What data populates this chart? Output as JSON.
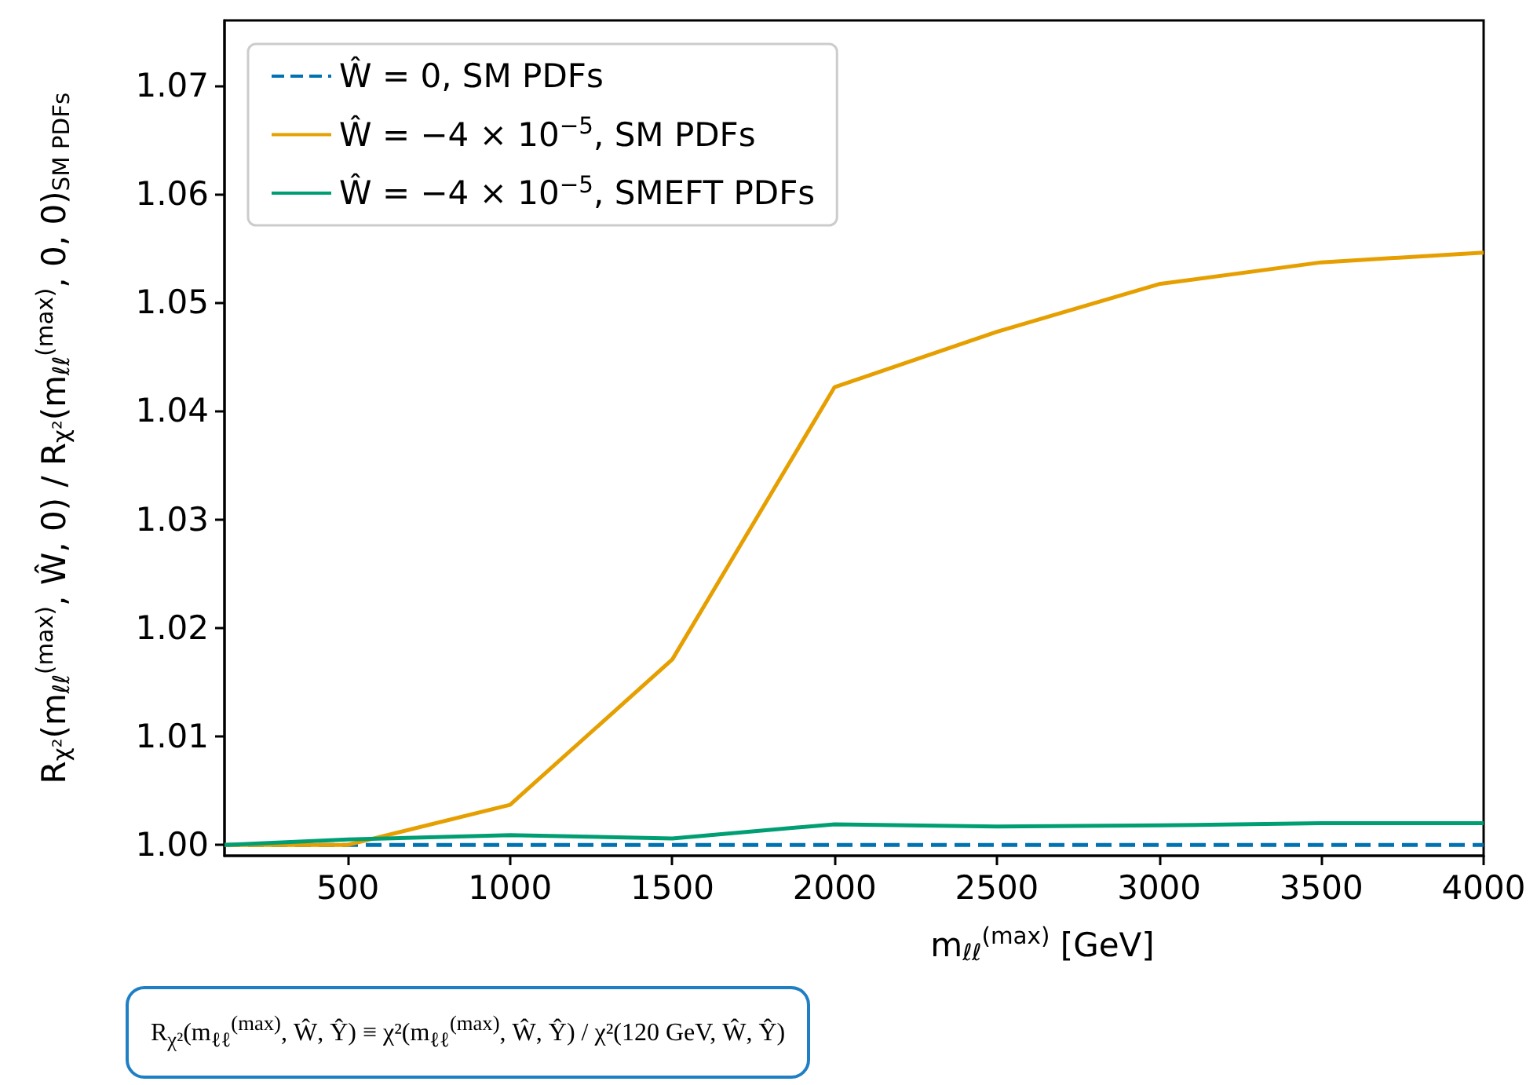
{
  "chart_data": {
    "type": "line",
    "x": [
      120,
      500,
      1000,
      1500,
      2000,
      2500,
      3000,
      3500,
      4000
    ],
    "series": [
      {
        "name": "Ŵ = 0, SM PDFs",
        "color": "#0072b2",
        "line_style": "dashed",
        "values": [
          1.0,
          1.0,
          1.0,
          1.0,
          1.0,
          1.0,
          1.0,
          1.0,
          1.0
        ]
      },
      {
        "name": "Ŵ = −4 × 10$^{−5}$, SM PDFs",
        "color": "#e69f00",
        "line_style": "solid",
        "values": [
          1.0,
          1.0,
          1.0037,
          1.0171,
          1.0422,
          1.0473,
          1.0517,
          1.0537,
          1.0546
        ]
      },
      {
        "name": "Ŵ = −4 × 10$^{−5}$, SMEFT PDFs",
        "color": "#009e73",
        "line_style": "solid",
        "values": [
          1.0,
          1.0005,
          1.0009,
          1.0006,
          1.0019,
          1.0017,
          1.0018,
          1.002,
          1.002
        ]
      }
    ],
    "xlabel": "m$_{ℓℓ}$$^{(max)}$ [GeV]",
    "ylabel": "R$_{χ²}$(m$_{ℓℓ}$$^{(max)}$, Ŵ, 0) / R$_{χ²}$(m$_{ℓℓ}$$^{(max)}$, 0, 0)$_{SM PDFs}$",
    "annotations": [
      "R$_{χ²}$(m$_{ℓℓ}$$^{(max)}$, Ŵ, Ŷ) ≡ χ²(m$_{ℓℓ}$$^{(max)}$, Ŵ, Ŷ) / χ²(120 GeV, Ŵ, Ŷ)"
    ],
    "xlim": [
      120,
      4000
    ],
    "xticks": [
      500,
      1000,
      1500,
      2000,
      2500,
      3000,
      3500,
      4000
    ],
    "ylim": [
      0.999,
      1.076
    ],
    "yticks": [
      {
        "value": 1.0,
        "label": "1.00"
      },
      {
        "value": 1.01,
        "label": "1.01"
      },
      {
        "value": 1.02,
        "label": "1.02"
      },
      {
        "value": 1.03,
        "label": "1.03"
      },
      {
        "value": 1.04,
        "label": "1.04"
      },
      {
        "value": 1.05,
        "label": "1.05"
      },
      {
        "value": 1.06,
        "label": "1.06"
      },
      {
        "value": 1.07,
        "label": "1.07"
      }
    ],
    "grid": false,
    "legend": "top left",
    "marker": "none"
  }
}
